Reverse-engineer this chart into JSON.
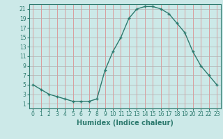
{
  "x": [
    0,
    1,
    2,
    3,
    4,
    5,
    6,
    7,
    8,
    9,
    10,
    11,
    12,
    13,
    14,
    15,
    16,
    17,
    18,
    19,
    20,
    21,
    22,
    23
  ],
  "y": [
    5,
    4,
    3,
    2.5,
    2,
    1.5,
    1.5,
    1.5,
    2,
    8,
    12,
    15,
    19,
    21,
    21.5,
    21.5,
    21,
    20,
    18,
    16,
    12,
    9,
    7,
    5
  ],
  "line_color": "#2d7a6e",
  "marker": "+",
  "bg_color": "#cce9e8",
  "grid_color": "#b0b0b0",
  "red_grid_color": "#e08080",
  "xlabel": "Humidex (Indice chaleur)",
  "xlim": [
    -0.5,
    23.5
  ],
  "ylim": [
    0,
    22
  ],
  "yticks": [
    1,
    3,
    5,
    7,
    9,
    11,
    13,
    15,
    17,
    19,
    21
  ],
  "xticks": [
    0,
    1,
    2,
    3,
    4,
    5,
    6,
    7,
    8,
    9,
    10,
    11,
    12,
    13,
    14,
    15,
    16,
    17,
    18,
    19,
    20,
    21,
    22,
    23
  ],
  "figsize": [
    3.2,
    2.0
  ],
  "dpi": 100,
  "xlabel_fontsize": 7,
  "tick_fontsize": 5.5,
  "line_width": 1.0,
  "marker_size": 3.5
}
